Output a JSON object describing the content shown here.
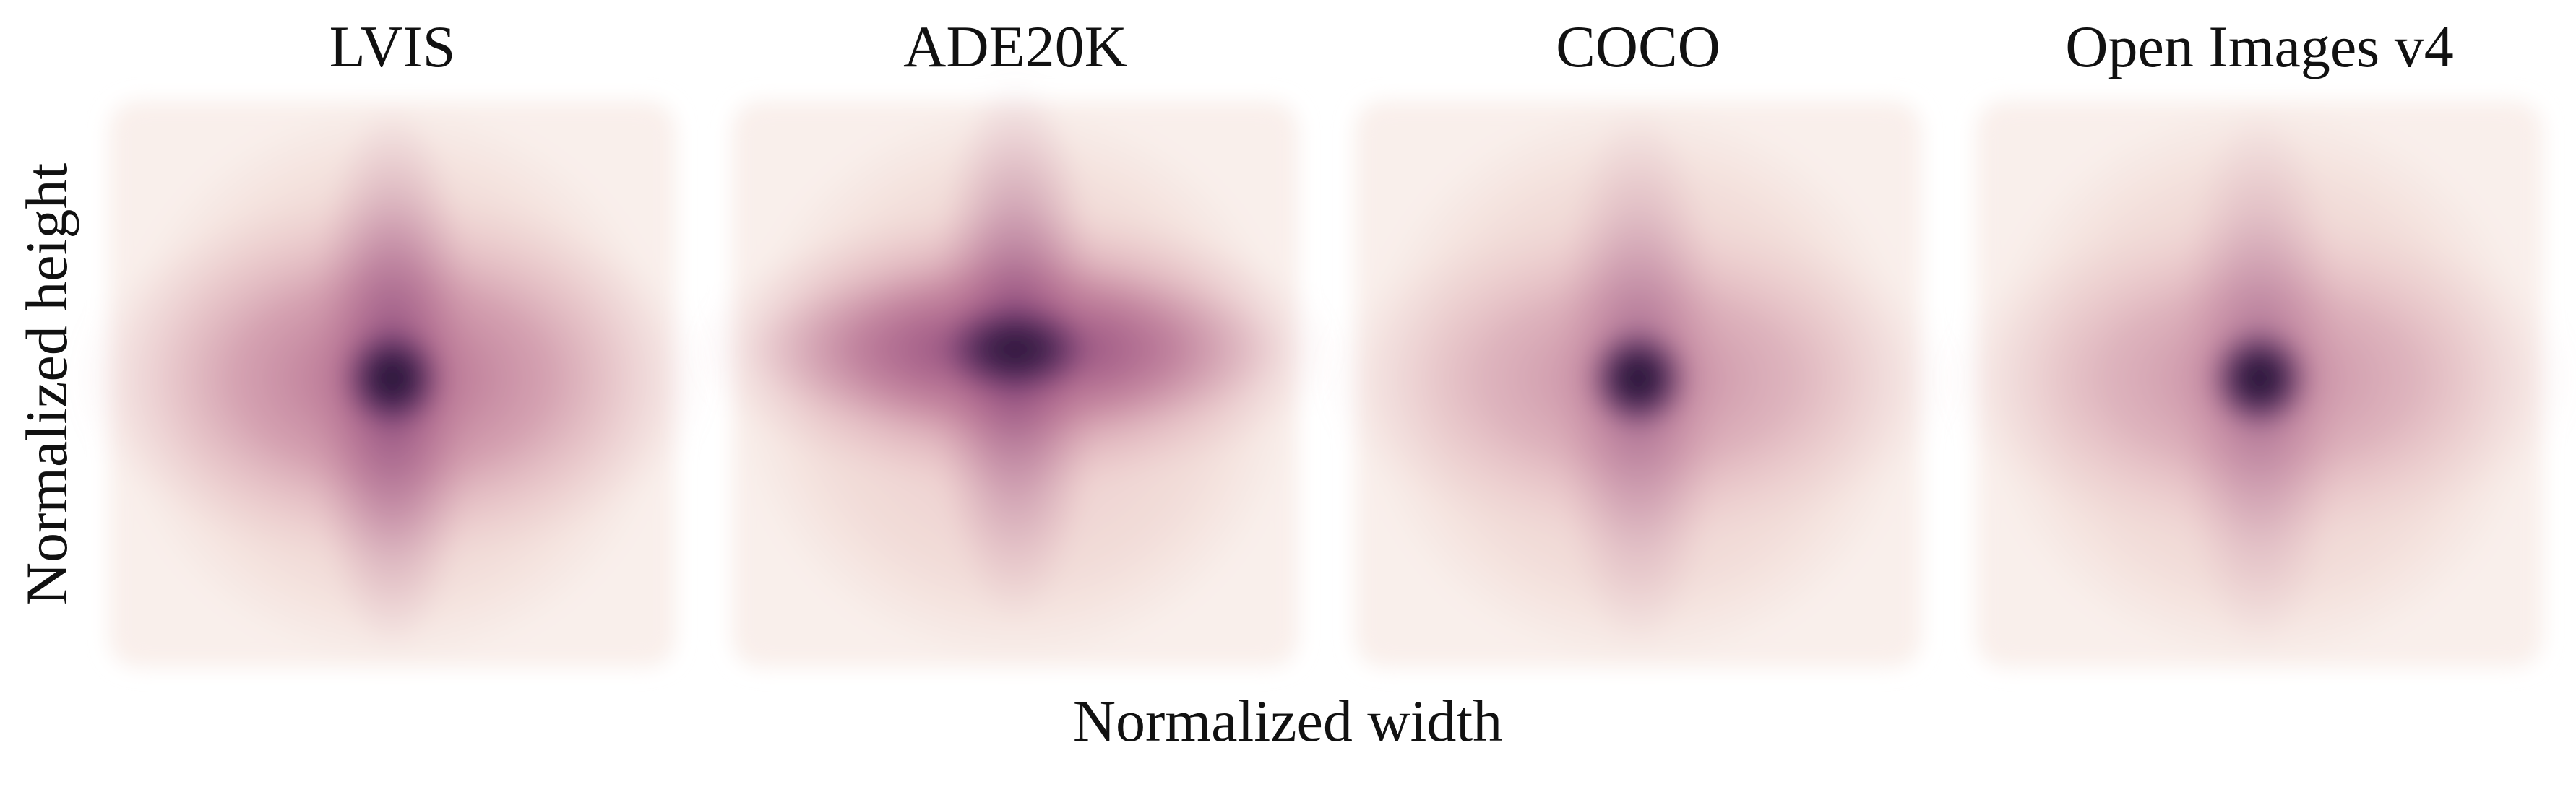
{
  "figure": {
    "panels": [
      {
        "title": "LVIS"
      },
      {
        "title": "ADE20K"
      },
      {
        "title": "COCO"
      },
      {
        "title": "Open Images v4"
      }
    ],
    "x_label": "Normalized width",
    "y_label": "Normalized height"
  }
}
